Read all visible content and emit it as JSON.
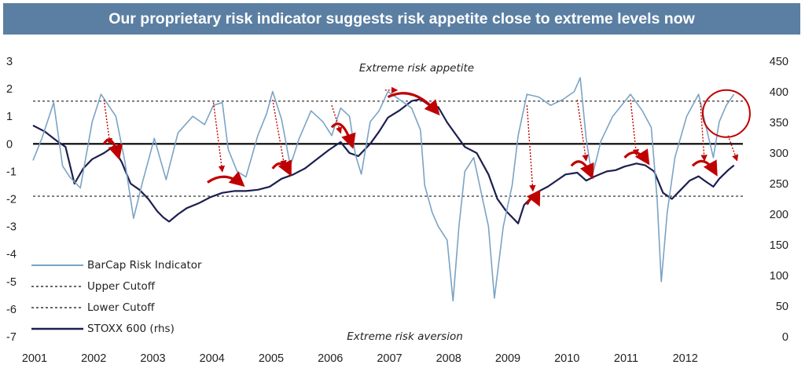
{
  "chart_data": {
    "type": "line",
    "title": "Our proprietary risk indicator suggests risk appetite close to extreme levels now",
    "x_ticks": [
      "2001",
      "2002",
      "2003",
      "2004",
      "2005",
      "2006",
      "2007",
      "2008",
      "2009",
      "2010",
      "2011",
      "2012"
    ],
    "y_left_ticks": [
      "3",
      "2",
      "1",
      "0",
      "-1",
      "-2",
      "-3",
      "-4",
      "-5",
      "-6",
      "-7"
    ],
    "y_right_ticks": [
      "450",
      "400",
      "350",
      "300",
      "250",
      "200",
      "150",
      "100",
      "50",
      "0"
    ],
    "ylim_left": [
      -7,
      3
    ],
    "ylim_right": [
      0,
      450
    ],
    "xlim": [
      2001,
      2013
    ],
    "zero_line": 0,
    "upper_cutoff": 1.55,
    "lower_cutoff": -1.9,
    "annotations": {
      "top": "Extreme risk appetite",
      "bottom": "Extreme risk aversion"
    },
    "colors": {
      "banner": "#5b7fa3",
      "risk": "#7ba3c4",
      "stoxx": "#1c1f4f",
      "arrow": "#c00000"
    },
    "legend": {
      "risk": "BarCap Risk Indicator",
      "upper": "Upper Cutoff",
      "lower": "Lower Cutoff",
      "stoxx": "STOXX 600 (rhs)"
    },
    "series": [
      {
        "name": "STOXX 600 (rhs)",
        "axis": "right",
        "points": [
          [
            2001.0,
            345
          ],
          [
            2001.2,
            335
          ],
          [
            2001.4,
            320
          ],
          [
            2001.55,
            310
          ],
          [
            2001.7,
            250
          ],
          [
            2001.85,
            275
          ],
          [
            2002.0,
            290
          ],
          [
            2002.2,
            300
          ],
          [
            2002.35,
            310
          ],
          [
            2002.5,
            285
          ],
          [
            2002.65,
            250
          ],
          [
            2002.8,
            240
          ],
          [
            2002.95,
            225
          ],
          [
            2003.1,
            205
          ],
          [
            2003.2,
            195
          ],
          [
            2003.3,
            188
          ],
          [
            2003.45,
            200
          ],
          [
            2003.6,
            210
          ],
          [
            2003.8,
            218
          ],
          [
            2004.0,
            228
          ],
          [
            2004.2,
            235
          ],
          [
            2004.4,
            238
          ],
          [
            2004.6,
            238
          ],
          [
            2004.8,
            240
          ],
          [
            2005.0,
            245
          ],
          [
            2005.2,
            258
          ],
          [
            2005.4,
            265
          ],
          [
            2005.6,
            275
          ],
          [
            2005.8,
            290
          ],
          [
            2006.0,
            305
          ],
          [
            2006.2,
            318
          ],
          [
            2006.35,
            300
          ],
          [
            2006.5,
            295
          ],
          [
            2006.7,
            315
          ],
          [
            2006.85,
            335
          ],
          [
            2007.0,
            358
          ],
          [
            2007.2,
            370
          ],
          [
            2007.4,
            385
          ],
          [
            2007.55,
            388
          ],
          [
            2007.7,
            378
          ],
          [
            2007.85,
            375
          ],
          [
            2008.0,
            350
          ],
          [
            2008.15,
            330
          ],
          [
            2008.3,
            310
          ],
          [
            2008.5,
            300
          ],
          [
            2008.7,
            265
          ],
          [
            2008.85,
            225
          ],
          [
            2009.0,
            205
          ],
          [
            2009.2,
            185
          ],
          [
            2009.3,
            215
          ],
          [
            2009.5,
            235
          ],
          [
            2009.7,
            245
          ],
          [
            2009.85,
            255
          ],
          [
            2010.0,
            265
          ],
          [
            2010.2,
            268
          ],
          [
            2010.35,
            255
          ],
          [
            2010.5,
            262
          ],
          [
            2010.7,
            270
          ],
          [
            2010.85,
            272
          ],
          [
            2011.0,
            278
          ],
          [
            2011.2,
            283
          ],
          [
            2011.35,
            280
          ],
          [
            2011.5,
            270
          ],
          [
            2011.65,
            235
          ],
          [
            2011.8,
            225
          ],
          [
            2011.95,
            240
          ],
          [
            2012.1,
            255
          ],
          [
            2012.25,
            262
          ],
          [
            2012.35,
            255
          ],
          [
            2012.5,
            245
          ],
          [
            2012.6,
            258
          ],
          [
            2012.75,
            272
          ],
          [
            2012.85,
            280
          ]
        ]
      },
      {
        "name": "BarCap Risk Indicator",
        "axis": "left",
        "points": [
          [
            2001.0,
            -0.6
          ],
          [
            2001.15,
            0.2
          ],
          [
            2001.35,
            1.5
          ],
          [
            2001.5,
            -0.8
          ],
          [
            2001.62,
            -1.2
          ],
          [
            2001.8,
            -1.6
          ],
          [
            2002.0,
            0.8
          ],
          [
            2002.15,
            1.8
          ],
          [
            2002.4,
            1.0
          ],
          [
            2002.55,
            -0.6
          ],
          [
            2002.7,
            -2.7
          ],
          [
            2002.85,
            -1.4
          ],
          [
            2003.05,
            0.2
          ],
          [
            2003.25,
            -1.3
          ],
          [
            2003.45,
            0.4
          ],
          [
            2003.7,
            1.0
          ],
          [
            2003.9,
            0.7
          ],
          [
            2004.05,
            1.4
          ],
          [
            2004.2,
            1.5
          ],
          [
            2004.3,
            -0.2
          ],
          [
            2004.45,
            -1.0
          ],
          [
            2004.6,
            -1.2
          ],
          [
            2004.8,
            0.3
          ],
          [
            2004.95,
            1.1
          ],
          [
            2005.05,
            1.9
          ],
          [
            2005.2,
            0.9
          ],
          [
            2005.35,
            -0.8
          ],
          [
            2005.5,
            0.2
          ],
          [
            2005.7,
            1.2
          ],
          [
            2005.9,
            0.8
          ],
          [
            2006.05,
            0.3
          ],
          [
            2006.2,
            1.3
          ],
          [
            2006.35,
            1.0
          ],
          [
            2006.45,
            -0.4
          ],
          [
            2006.55,
            -1.1
          ],
          [
            2006.7,
            0.8
          ],
          [
            2006.85,
            1.2
          ],
          [
            2007.0,
            1.9
          ],
          [
            2007.2,
            1.6
          ],
          [
            2007.4,
            1.3
          ],
          [
            2007.55,
            0.5
          ],
          [
            2007.62,
            -1.5
          ],
          [
            2007.75,
            -2.5
          ],
          [
            2007.85,
            -3.0
          ],
          [
            2008.0,
            -3.5
          ],
          [
            2008.1,
            -5.7
          ],
          [
            2008.2,
            -3.0
          ],
          [
            2008.3,
            -1.0
          ],
          [
            2008.45,
            -0.5
          ],
          [
            2008.55,
            -1.5
          ],
          [
            2008.7,
            -3.0
          ],
          [
            2008.8,
            -5.6
          ],
          [
            2008.95,
            -3.0
          ],
          [
            2009.1,
            -1.5
          ],
          [
            2009.2,
            0.3
          ],
          [
            2009.35,
            1.8
          ],
          [
            2009.55,
            1.7
          ],
          [
            2009.75,
            1.4
          ],
          [
            2009.95,
            1.6
          ],
          [
            2010.15,
            1.9
          ],
          [
            2010.25,
            2.4
          ],
          [
            2010.35,
            0.2
          ],
          [
            2010.45,
            -1.2
          ],
          [
            2010.6,
            0.1
          ],
          [
            2010.8,
            1.0
          ],
          [
            2010.95,
            1.4
          ],
          [
            2011.1,
            1.8
          ],
          [
            2011.3,
            1.2
          ],
          [
            2011.45,
            0.6
          ],
          [
            2011.55,
            -2.0
          ],
          [
            2011.62,
            -5.0
          ],
          [
            2011.72,
            -2.5
          ],
          [
            2011.85,
            -0.5
          ],
          [
            2012.05,
            1.0
          ],
          [
            2012.25,
            1.8
          ],
          [
            2012.38,
            0.6
          ],
          [
            2012.5,
            -0.5
          ],
          [
            2012.6,
            0.8
          ],
          [
            2012.72,
            1.4
          ],
          [
            2012.85,
            1.8
          ]
        ]
      }
    ]
  }
}
